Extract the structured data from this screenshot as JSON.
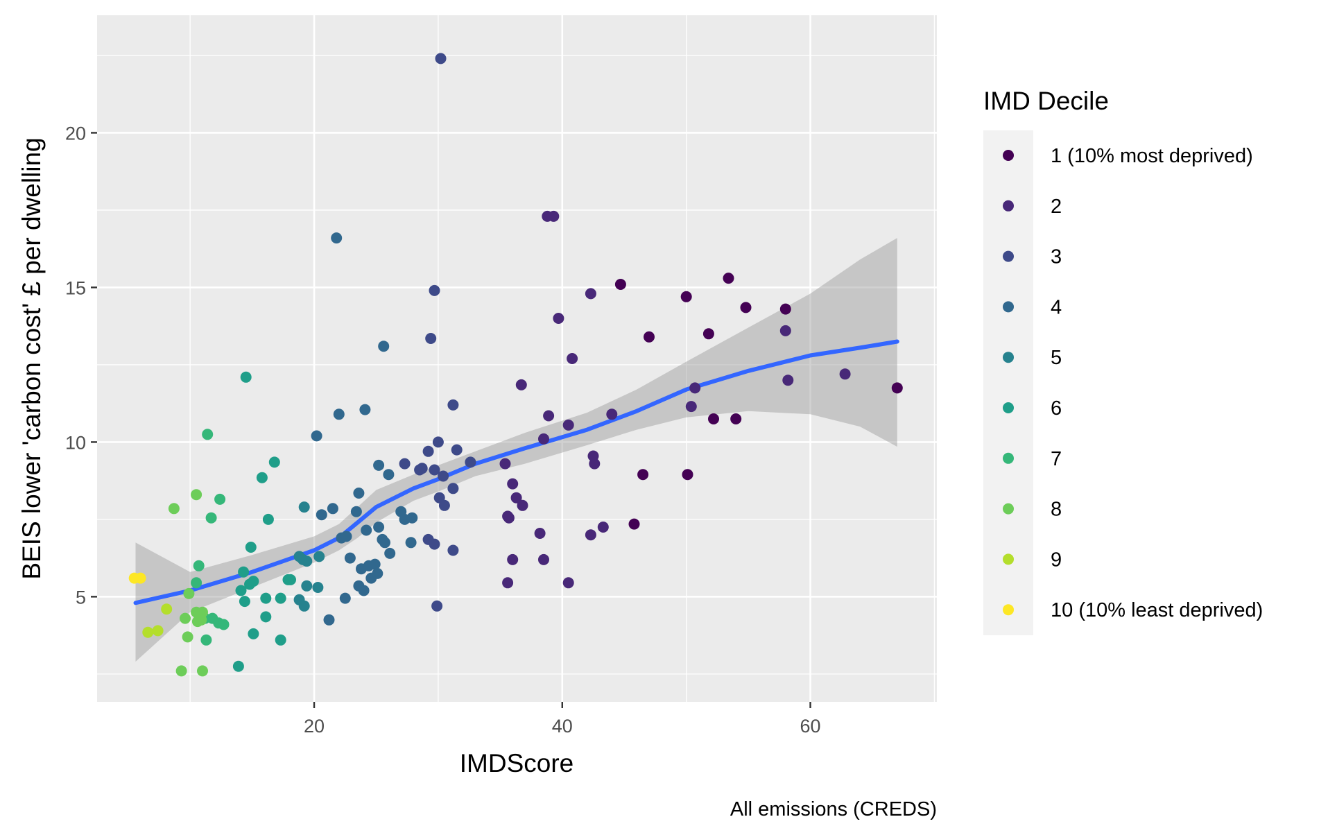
{
  "chart_data": {
    "type": "scatter",
    "title": "",
    "xlabel": "IMDScore",
    "ylabel": "BEIS lower 'carbon cost' £ per dwelling",
    "caption": "All emissions (CREDS)",
    "xlim": [
      2.5,
      70.2
    ],
    "ylim": [
      1.6,
      23.8
    ],
    "x_ticks": [
      20,
      40,
      60
    ],
    "y_ticks": [
      5,
      10,
      15,
      20
    ],
    "grid": true,
    "legend": {
      "title": "IMD Decile",
      "position": "right",
      "entries": [
        {
          "label": "1 (10% most deprived)",
          "color": "#440154"
        },
        {
          "label": "2",
          "color": "#482878"
        },
        {
          "label": "3",
          "color": "#3E4A89"
        },
        {
          "label": "4",
          "color": "#31688E"
        },
        {
          "label": "5",
          "color": "#26828E"
        },
        {
          "label": "6",
          "color": "#1F9E89"
        },
        {
          "label": "7",
          "color": "#35B779"
        },
        {
          "label": "8",
          "color": "#6DCD59"
        },
        {
          "label": "9",
          "color": "#B4DE2C"
        },
        {
          "label": "10 (10% least deprived)",
          "color": "#FDE725"
        }
      ]
    },
    "smooth": {
      "color": "#3366FF",
      "band_color": "#999999",
      "line": [
        [
          5.6,
          4.8
        ],
        [
          10,
          5.2
        ],
        [
          15,
          5.8
        ],
        [
          20,
          6.5
        ],
        [
          22,
          6.9
        ],
        [
          23.5,
          7.4
        ],
        [
          25,
          7.9
        ],
        [
          28,
          8.5
        ],
        [
          30,
          8.8
        ],
        [
          33,
          9.3
        ],
        [
          37,
          9.8
        ],
        [
          42,
          10.4
        ],
        [
          46,
          11.0
        ],
        [
          50,
          11.7
        ],
        [
          55,
          12.3
        ],
        [
          60,
          12.8
        ],
        [
          64,
          13.05
        ],
        [
          67,
          13.25
        ]
      ],
      "lower": [
        [
          5.6,
          2.9
        ],
        [
          10,
          4.5
        ],
        [
          15,
          5.3
        ],
        [
          20,
          6.1
        ],
        [
          22,
          6.5
        ],
        [
          23.5,
          6.9
        ],
        [
          25,
          7.4
        ],
        [
          28,
          8.1
        ],
        [
          30,
          8.4
        ],
        [
          33,
          8.9
        ],
        [
          37,
          9.3
        ],
        [
          42,
          9.9
        ],
        [
          46,
          10.4
        ],
        [
          50,
          10.8
        ],
        [
          55,
          11.0
        ],
        [
          60,
          10.9
        ],
        [
          64,
          10.5
        ],
        [
          67,
          9.85
        ]
      ],
      "upper": [
        [
          5.6,
          6.75
        ],
        [
          10,
          5.8
        ],
        [
          15,
          6.35
        ],
        [
          20,
          6.95
        ],
        [
          22,
          7.35
        ],
        [
          23.5,
          7.9
        ],
        [
          25,
          8.45
        ],
        [
          28,
          8.95
        ],
        [
          30,
          9.25
        ],
        [
          33,
          9.7
        ],
        [
          37,
          10.3
        ],
        [
          42,
          10.95
        ],
        [
          46,
          11.7
        ],
        [
          50,
          12.6
        ],
        [
          55,
          13.7
        ],
        [
          60,
          14.8
        ],
        [
          64,
          15.9
        ],
        [
          67,
          16.6
        ]
      ]
    },
    "series": [
      {
        "name": "1 (10% most deprived)",
        "points": [
          [
            44.7,
            15.1
          ],
          [
            53.4,
            15.3
          ],
          [
            54.8,
            14.35
          ],
          [
            58,
            14.3
          ],
          [
            50,
            14.7
          ],
          [
            51.8,
            13.5
          ],
          [
            47,
            13.4
          ],
          [
            67,
            11.75
          ],
          [
            52.2,
            10.75
          ],
          [
            54,
            10.75
          ],
          [
            46.5,
            8.95
          ],
          [
            50.1,
            8.95
          ],
          [
            45.8,
            7.35
          ]
        ]
      },
      {
        "name": "2",
        "points": [
          [
            38.8,
            17.3
          ],
          [
            39.3,
            17.3
          ],
          [
            42.3,
            14.8
          ],
          [
            39.7,
            14.0
          ],
          [
            40.8,
            12.7
          ],
          [
            36.7,
            11.85
          ],
          [
            58.2,
            12.0
          ],
          [
            62.8,
            12.2
          ],
          [
            58,
            13.6
          ],
          [
            50.7,
            11.75
          ],
          [
            50.4,
            11.15
          ],
          [
            44,
            10.9
          ],
          [
            38.9,
            10.85
          ],
          [
            40.5,
            10.55
          ],
          [
            38.5,
            10.1
          ],
          [
            42.5,
            9.55
          ],
          [
            42.6,
            9.3
          ],
          [
            35.4,
            9.3
          ],
          [
            36,
            8.65
          ],
          [
            36.3,
            8.2
          ],
          [
            36.8,
            7.95
          ],
          [
            35.6,
            7.6
          ],
          [
            35.7,
            7.55
          ],
          [
            38.2,
            7.05
          ],
          [
            42.3,
            7.0
          ],
          [
            43.3,
            7.25
          ],
          [
            36,
            6.2
          ],
          [
            38.5,
            6.2
          ],
          [
            35.6,
            5.45
          ],
          [
            40.5,
            5.45
          ]
        ]
      },
      {
        "name": "3",
        "points": [
          [
            30.2,
            22.4
          ],
          [
            29.7,
            14.9
          ],
          [
            29.4,
            13.35
          ],
          [
            31.2,
            11.2
          ],
          [
            30,
            10.0
          ],
          [
            31.5,
            9.75
          ],
          [
            32.6,
            9.35
          ],
          [
            29.2,
            9.7
          ],
          [
            28.5,
            9.1
          ],
          [
            29.7,
            9.1
          ],
          [
            30.4,
            8.9
          ],
          [
            31.2,
            8.5
          ],
          [
            30.1,
            8.2
          ],
          [
            30.5,
            7.95
          ],
          [
            27.3,
            9.3
          ],
          [
            28.7,
            9.15
          ],
          [
            29.2,
            6.85
          ],
          [
            29.7,
            6.7
          ],
          [
            31.2,
            6.5
          ],
          [
            29.9,
            4.7
          ]
        ]
      },
      {
        "name": "4",
        "points": [
          [
            21.8,
            16.6
          ],
          [
            25.6,
            13.1
          ],
          [
            22,
            10.9
          ],
          [
            24.1,
            11.05
          ],
          [
            20.2,
            10.2
          ],
          [
            23.6,
            8.35
          ],
          [
            21.5,
            7.85
          ],
          [
            20.6,
            7.65
          ],
          [
            23.4,
            7.75
          ],
          [
            24.2,
            7.15
          ],
          [
            25.2,
            9.25
          ],
          [
            26,
            8.95
          ],
          [
            27,
            7.75
          ],
          [
            27.3,
            7.5
          ],
          [
            27.9,
            7.55
          ],
          [
            25.2,
            7.25
          ],
          [
            25.5,
            6.85
          ],
          [
            25.7,
            6.75
          ],
          [
            26.1,
            6.4
          ],
          [
            27.8,
            6.75
          ],
          [
            22.2,
            6.9
          ],
          [
            22.6,
            6.95
          ],
          [
            22.9,
            6.25
          ],
          [
            23.8,
            5.9
          ],
          [
            24.4,
            6.0
          ],
          [
            24.9,
            6.05
          ],
          [
            25.1,
            5.75
          ],
          [
            24.6,
            5.6
          ],
          [
            23.6,
            5.35
          ],
          [
            24,
            5.2
          ],
          [
            22.5,
            4.95
          ],
          [
            21.2,
            4.25
          ]
        ]
      },
      {
        "name": "5",
        "points": [
          [
            19.2,
            7.9
          ],
          [
            18.8,
            6.3
          ],
          [
            19.4,
            6.15
          ],
          [
            19.1,
            6.2
          ],
          [
            20.4,
            6.3
          ],
          [
            19.4,
            5.35
          ],
          [
            20.3,
            5.3
          ],
          [
            18.8,
            4.9
          ],
          [
            19.2,
            4.7
          ]
        ]
      },
      {
        "name": "6",
        "points": [
          [
            14.5,
            12.1
          ],
          [
            16.8,
            9.35
          ],
          [
            15.8,
            8.85
          ],
          [
            16.3,
            7.5
          ],
          [
            14.9,
            6.6
          ],
          [
            14.3,
            5.8
          ],
          [
            14.8,
            5.4
          ],
          [
            15.1,
            5.5
          ],
          [
            14.1,
            5.2
          ],
          [
            16.1,
            4.95
          ],
          [
            17.3,
            4.95
          ],
          [
            17.9,
            5.55
          ],
          [
            18.1,
            5.55
          ],
          [
            14.4,
            4.85
          ],
          [
            16.1,
            4.35
          ],
          [
            15.1,
            3.8
          ],
          [
            17.3,
            3.6
          ],
          [
            13.9,
            2.75
          ]
        ]
      },
      {
        "name": "7",
        "points": [
          [
            11.4,
            10.25
          ],
          [
            11.7,
            7.55
          ],
          [
            12.4,
            8.15
          ],
          [
            10.7,
            6.0
          ],
          [
            10.5,
            5.45
          ],
          [
            11.2,
            4.3
          ],
          [
            11.8,
            4.3
          ],
          [
            12.3,
            4.15
          ],
          [
            12.7,
            4.1
          ],
          [
            11.3,
            3.6
          ]
        ]
      },
      {
        "name": "8",
        "points": [
          [
            10.5,
            8.3
          ],
          [
            8.7,
            7.85
          ],
          [
            9.9,
            5.1
          ],
          [
            10.5,
            4.5
          ],
          [
            11,
            4.5
          ],
          [
            9.6,
            4.3
          ],
          [
            10.6,
            4.2
          ],
          [
            10.9,
            4.25
          ],
          [
            9.8,
            3.7
          ],
          [
            9.3,
            2.6
          ],
          [
            11,
            2.6
          ]
        ]
      },
      {
        "name": "9",
        "points": [
          [
            8.1,
            4.6
          ],
          [
            6.6,
            3.85
          ],
          [
            7.4,
            3.9
          ]
        ]
      },
      {
        "name": "10 (10% least deprived)",
        "points": [
          [
            5.5,
            5.6
          ],
          [
            6,
            5.6
          ]
        ]
      }
    ]
  }
}
